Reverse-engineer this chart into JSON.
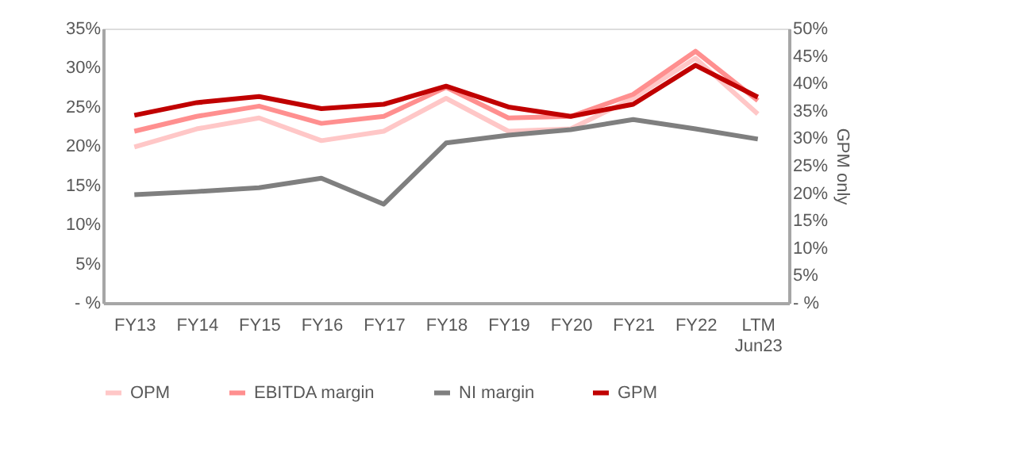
{
  "chart_data": {
    "type": "line",
    "categories": [
      "FY13",
      "FY14",
      "FY15",
      "FY16",
      "FY17",
      "FY18",
      "FY19",
      "FY20",
      "FY21",
      "FY22",
      "LTM Jun23"
    ],
    "series": [
      {
        "name": "OPM",
        "color": "#ffc7c7",
        "values": [
          19.9,
          22.2,
          23.6,
          20.7,
          21.9,
          26.1,
          21.9,
          22.2,
          26.1,
          31.2,
          24.1
        ]
      },
      {
        "name": "EBITDA margin",
        "color": "#ff8f8f",
        "values": [
          21.9,
          23.8,
          25.1,
          22.9,
          23.8,
          27.5,
          23.6,
          23.8,
          26.6,
          32.1,
          25.8
        ]
      },
      {
        "name": "NI margin",
        "color": "#7f7f7f",
        "values": [
          13.8,
          14.2,
          14.7,
          15.9,
          12.6,
          20.4,
          21.4,
          22.1,
          23.4,
          22.2,
          20.9
        ]
      },
      {
        "name": "GPM",
        "color": "#c00000",
        "axis": "y2",
        "values": [
          34.2,
          36.5,
          37.6,
          35.4,
          36.2,
          39.5,
          35.7,
          34.0,
          36.2,
          43.3,
          37.5
        ]
      }
    ],
    "ylim": [
      0,
      35
    ],
    "yticks": [
      {
        "value": 0,
        "label": "- %"
      },
      {
        "value": 5,
        "label": "5%"
      },
      {
        "value": 10,
        "label": "10%"
      },
      {
        "value": 15,
        "label": "15%"
      },
      {
        "value": 20,
        "label": "20%"
      },
      {
        "value": 25,
        "label": "25%"
      },
      {
        "value": 30,
        "label": "30%"
      },
      {
        "value": 35,
        "label": "35%"
      }
    ],
    "y2lim": [
      0,
      50
    ],
    "y2ticks": [
      {
        "value": 0,
        "label": "- %"
      },
      {
        "value": 5,
        "label": "5%"
      },
      {
        "value": 10,
        "label": "10%"
      },
      {
        "value": 15,
        "label": "15%"
      },
      {
        "value": 20,
        "label": "20%"
      },
      {
        "value": 25,
        "label": "25%"
      },
      {
        "value": 30,
        "label": "30%"
      },
      {
        "value": 35,
        "label": "35%"
      },
      {
        "value": 40,
        "label": "40%"
      },
      {
        "value": 45,
        "label": "45%"
      },
      {
        "value": 50,
        "label": "50%"
      }
    ],
    "y2label": "GPM only",
    "grid": false,
    "legend": "bottom",
    "marker": "none",
    "line_style": "solid"
  }
}
